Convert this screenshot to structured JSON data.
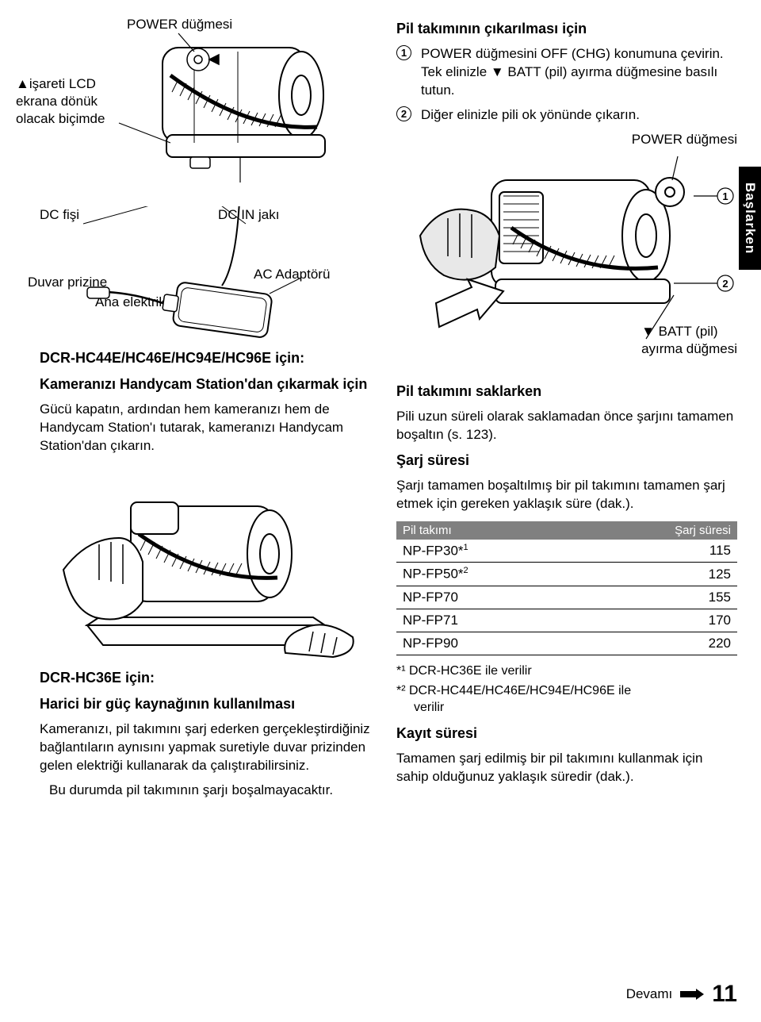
{
  "left": {
    "power_label": "POWER düğmesi",
    "lcd_note": "▲işareti LCD\nekrana dönük\nolacak biçimde",
    "dc_plug": "DC fişi",
    "dc_in": "DC IN jakı",
    "wall": "Duvar prizine",
    "adapter": "AC Adaptörü",
    "mains": "Ana elektrik kablosu",
    "heading1": "DCR-HC44E/HC46E/HC94E/HC96E için:",
    "heading1b": "Kameranızı Handycam Station'dan çıkarmak için",
    "para1": "Gücü kapatın, ardından hem kameranızı hem de Handycam Station'ı tutarak, kameranızı Handycam Station'dan çıkarın.",
    "heading2": "DCR-HC36E için:",
    "heading2b": "Harici bir güç kaynağının kullanılması",
    "para2": "Kameranızı, pil takımını şarj ederken gerçekleştirdiğiniz bağlantıların aynısını yapmak suretiyle duvar prizinden gelen elektriği kullanarak da çalıştırabilirsiniz.",
    "para2b": "Bu durumda pil takımının şarjı boşalmayacaktır."
  },
  "right": {
    "title": "Pil takımının çıkarılması için",
    "step1": "POWER düğmesini OFF (CHG) konumuna çevirin. Tek elinizle ▼ BATT (pil) ayırma düğmesine basılı tutun.",
    "step2": "Diğer elinizle pili ok yönünde çıkarın.",
    "power_label": "POWER düğmesi",
    "batt_label": "▼ BATT (pil)\nayırma düğmesi",
    "store_heading": "Pil takımını saklarken",
    "store_text": "Pili uzun süreli olarak saklamadan önce şarjını tamamen boşaltın (s. 123).",
    "charge_heading": "Şarj süresi",
    "charge_text": "Şarjı tamamen boşaltılmış bir pil takımını tamamen şarj etmek için gereken yaklaşık süre (dak.).",
    "table": {
      "col1": "Pil takımı",
      "col2": "Şarj süresi",
      "rows": [
        {
          "name": "NP-FP30*",
          "sup": "1",
          "val": "115"
        },
        {
          "name": "NP-FP50*",
          "sup": "2",
          "val": "125"
        },
        {
          "name": "NP-FP70",
          "sup": "",
          "val": "155"
        },
        {
          "name": "NP-FP71",
          "sup": "",
          "val": "170"
        },
        {
          "name": "NP-FP90",
          "sup": "",
          "val": "220"
        }
      ]
    },
    "fn1": "*¹ DCR-HC36E ile verilir",
    "fn2a": "*² DCR-HC44E/HC46E/HC94E/HC96E ile",
    "fn2b": "verilir",
    "rec_heading": "Kayıt süresi",
    "rec_text": "Tamamen şarj edilmiş bir pil takımını kullanmak için sahip olduğunuz yaklaşık süredir (dak.)."
  },
  "tab": "Başlarken",
  "continue": "Devamı",
  "page": "11",
  "colors": {
    "black": "#000000",
    "grey": "#808080",
    "white": "#ffffff"
  }
}
